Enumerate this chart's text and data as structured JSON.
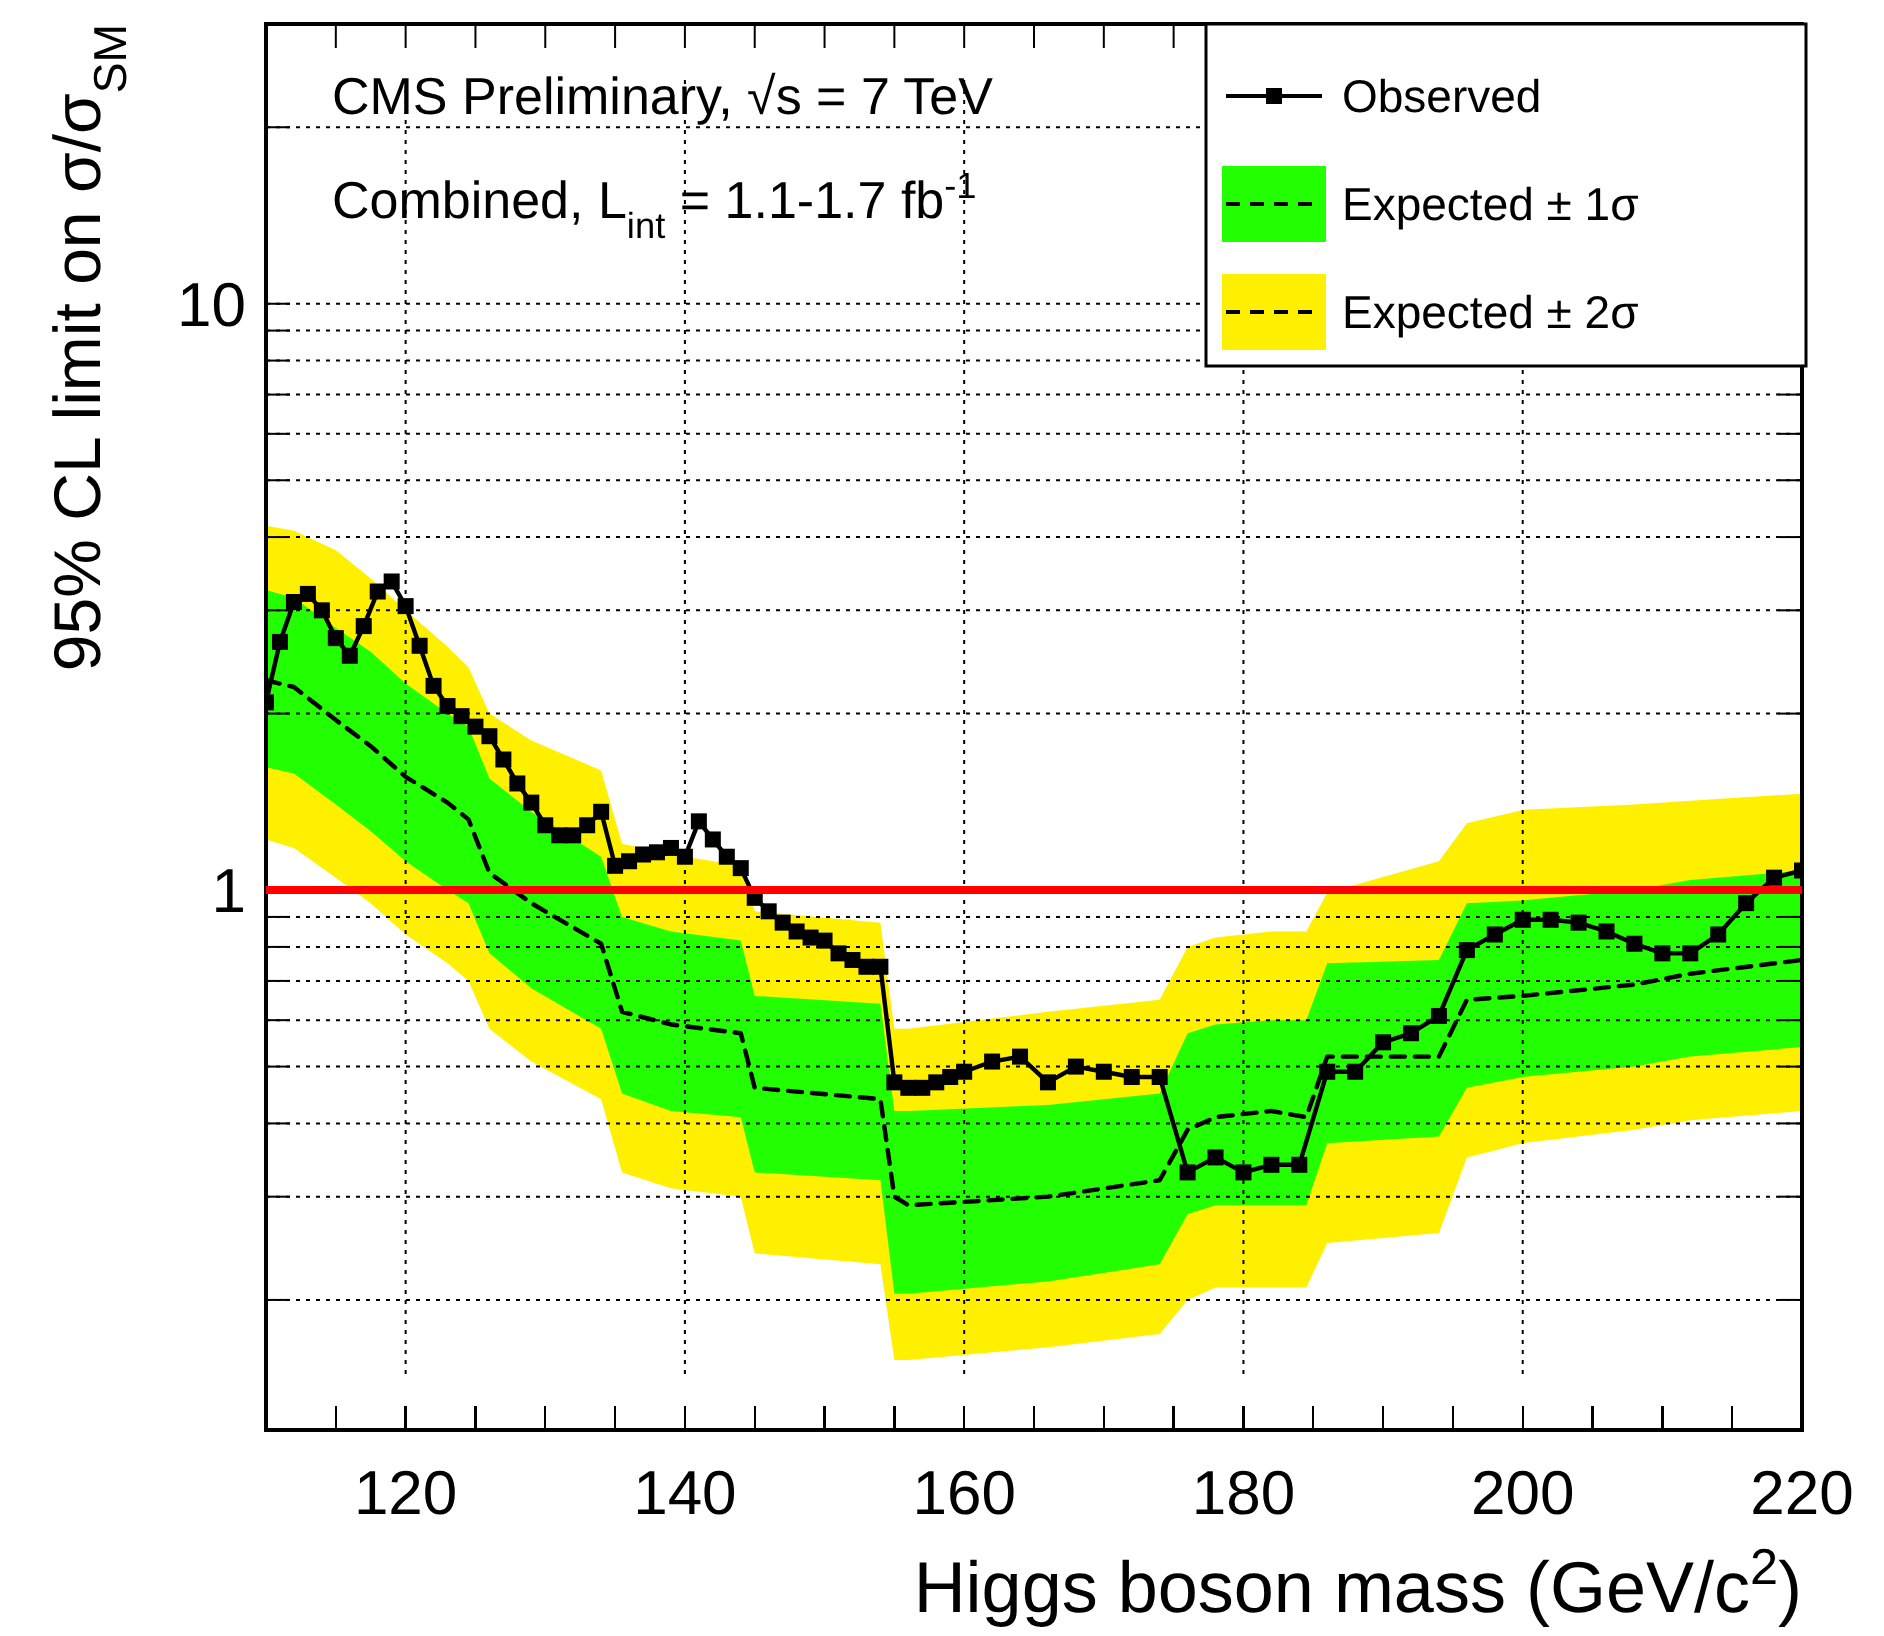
{
  "chart_data": {
    "type": "line",
    "xlabel": "Higgs boson mass (GeV/c$^{2}$)",
    "ylabel": "95% CL limit on σ/σ$_{SM}$",
    "annotations": [
      "CMS Preliminary, √s = 7 TeV",
      "Combined, L$_{int}$ = 1.1-1.7 fb$^{-1}$"
    ],
    "xlim": [
      110,
      220
    ],
    "xticks": [
      {
        "value": 115,
        "label": null
      },
      120,
      {
        "value": 125,
        "label": null
      },
      {
        "value": 130,
        "label": null
      },
      {
        "value": 135,
        "label": null
      },
      140,
      {
        "value": 145,
        "label": null
      },
      {
        "value": 150,
        "label": null
      },
      {
        "value": 155,
        "label": null
      },
      160,
      {
        "value": 165,
        "label": null
      },
      {
        "value": 170,
        "label": null
      },
      {
        "value": 175,
        "label": null
      },
      180,
      {
        "value": 185,
        "label": null
      },
      {
        "value": 190,
        "label": null
      },
      {
        "value": 195,
        "label": null
      },
      200,
      {
        "value": 205,
        "label": null
      },
      {
        "value": 210,
        "label": null
      },
      {
        "value": 215,
        "label": null
      },
      220
    ],
    "ylim": [
      0.12,
      30
    ],
    "log": true,
    "yticks": [
      {
        "value": 0.2,
        "label": null
      },
      {
        "value": 0.3,
        "label": null
      },
      {
        "value": 0.4,
        "label": null
      },
      {
        "value": 0.5,
        "label": null
      },
      {
        "value": 0.6,
        "label": null
      },
      {
        "value": 0.7,
        "label": null
      },
      {
        "value": 0.8,
        "label": null
      },
      {
        "value": 0.9,
        "label": null
      },
      1,
      {
        "value": 2,
        "label": null
      },
      {
        "value": 3,
        "label": null
      },
      {
        "value": 4,
        "label": null
      },
      {
        "value": 5,
        "label": null
      },
      {
        "value": 6,
        "label": null
      },
      {
        "value": 7,
        "label": null
      },
      {
        "value": 8,
        "label": null
      },
      {
        "value": 9,
        "label": null
      },
      10,
      {
        "value": 20,
        "label": null
      }
    ],
    "grid": true,
    "legend": "top right",
    "ref_lines": [
      {
        "axis": "y",
        "value": 1,
        "color": "#ff0000"
      }
    ],
    "series": [
      {
        "name": "Expected ± 2σ",
        "type": "area",
        "color": "#fff000",
        "x": [
          110,
          112,
          115,
          117.5,
          120,
          123,
          124.5,
          126,
          129,
          134,
          135.5,
          139,
          144,
          145,
          154,
          155,
          156,
          166,
          174,
          176,
          178,
          182,
          184.5,
          186,
          194,
          196,
          200,
          208,
          212,
          220
        ],
        "values": [
          null,
          null,
          null,
          null,
          null,
          null,
          null,
          null,
          null,
          null,
          null,
          null,
          null,
          null,
          null,
          null,
          null,
          null,
          null,
          null,
          null,
          null,
          null,
          null,
          null,
          null,
          null,
          null,
          null,
          null
        ],
        "lower": [
          1.22,
          1.18,
          1.05,
          0.95,
          0.84,
          0.75,
          0.7,
          0.58,
          0.51,
          0.44,
          0.33,
          0.31,
          0.3,
          0.24,
          0.23,
          0.158,
          0.158,
          0.166,
          0.175,
          0.2,
          0.21,
          0.21,
          0.21,
          0.25,
          0.26,
          0.35,
          0.37,
          0.39,
          0.405,
          0.42
        ],
        "upper": [
          4.18,
          4.1,
          3.8,
          3.4,
          3.0,
          2.6,
          2.4,
          2.0,
          1.8,
          1.6,
          1.2,
          1.15,
          1.1,
          0.92,
          0.88,
          0.58,
          0.58,
          0.62,
          0.65,
          0.8,
          0.83,
          0.85,
          0.85,
          0.99,
          1.12,
          1.3,
          1.37,
          1.4,
          1.42,
          1.46
        ]
      },
      {
        "name": "Expected ± 1σ",
        "type": "area",
        "color": "#22ff00",
        "x": [
          110,
          112,
          115,
          117.5,
          120,
          123,
          124.5,
          126,
          129,
          134,
          135.5,
          139,
          144,
          145,
          154,
          155,
          156,
          166,
          174,
          176,
          178,
          182,
          184.5,
          186,
          194,
          196,
          200,
          208,
          212,
          220
        ],
        "values": [
          null,
          null,
          null,
          null,
          null,
          null,
          null,
          null,
          null,
          null,
          null,
          null,
          null,
          null,
          null,
          null,
          null,
          null,
          null,
          null,
          null,
          null,
          null,
          null,
          null,
          null,
          null,
          null,
          null,
          null
        ],
        "lower": [
          1.62,
          1.58,
          1.4,
          1.26,
          1.12,
          1.0,
          0.95,
          0.78,
          0.68,
          0.58,
          0.45,
          0.42,
          0.41,
          0.33,
          0.32,
          0.205,
          0.205,
          0.215,
          0.23,
          0.28,
          0.29,
          0.29,
          0.29,
          0.37,
          0.38,
          0.46,
          0.48,
          0.5,
          0.52,
          0.54
        ],
        "upper": [
          3.25,
          3.15,
          2.8,
          2.55,
          2.25,
          2.0,
          1.9,
          1.55,
          1.36,
          1.14,
          0.9,
          0.85,
          0.82,
          0.66,
          0.64,
          0.42,
          0.42,
          0.43,
          0.45,
          0.57,
          0.59,
          0.6,
          0.6,
          0.75,
          0.76,
          0.95,
          0.96,
          1.0,
          1.04,
          1.08
        ]
      },
      {
        "type": "line",
        "color": "#000000",
        "line_style": "dashed",
        "marker": "none",
        "x": [
          110,
          112,
          115,
          117.5,
          120,
          123,
          124.5,
          126,
          129,
          134,
          135.5,
          139,
          144,
          145,
          154,
          155,
          156,
          166,
          174,
          176,
          178,
          182,
          184.5,
          186,
          194,
          196,
          200,
          208,
          212,
          220
        ],
        "values": [
          2.28,
          2.22,
          1.95,
          1.76,
          1.56,
          1.41,
          1.32,
          1.07,
          0.95,
          0.81,
          0.62,
          0.59,
          0.57,
          0.46,
          0.44,
          0.3,
          0.29,
          0.3,
          0.32,
          0.39,
          0.41,
          0.42,
          0.41,
          0.52,
          0.52,
          0.65,
          0.66,
          0.69,
          0.72,
          0.76
        ]
      },
      {
        "name": "Observed",
        "color": "#000000",
        "marker": "square",
        "x": [
          110,
          111,
          112,
          113,
          114,
          115,
          116,
          117,
          118,
          119,
          120,
          121,
          122,
          123,
          124,
          125,
          126,
          127,
          128,
          129,
          130,
          131,
          132,
          133,
          134,
          135,
          136,
          137,
          138,
          139,
          140,
          141,
          142,
          143,
          144,
          145,
          146,
          147,
          148,
          149,
          150,
          151,
          152,
          153,
          154,
          155,
          156,
          157,
          158,
          159,
          160,
          162,
          164,
          166,
          168,
          170,
          172,
          174,
          176,
          178,
          180,
          182,
          184,
          186,
          188,
          190,
          192,
          194,
          196,
          198,
          200,
          202,
          204,
          206,
          208,
          210,
          212,
          214,
          216,
          218,
          220
        ],
        "values": [
          2.09,
          2.65,
          3.1,
          3.2,
          3.0,
          2.69,
          2.51,
          2.82,
          3.23,
          3.36,
          3.05,
          2.61,
          2.23,
          2.06,
          1.98,
          1.9,
          1.83,
          1.67,
          1.52,
          1.41,
          1.29,
          1.24,
          1.24,
          1.29,
          1.36,
          1.1,
          1.12,
          1.15,
          1.16,
          1.18,
          1.14,
          1.31,
          1.22,
          1.14,
          1.09,
          0.97,
          0.92,
          0.88,
          0.85,
          0.83,
          0.82,
          0.78,
          0.76,
          0.74,
          0.74,
          0.47,
          0.46,
          0.46,
          0.47,
          0.48,
          0.49,
          0.51,
          0.52,
          0.47,
          0.5,
          0.49,
          0.48,
          0.48,
          0.33,
          0.35,
          0.33,
          0.34,
          0.34,
          0.49,
          0.49,
          0.55,
          0.57,
          0.61,
          0.79,
          0.84,
          0.89,
          0.89,
          0.88,
          0.85,
          0.81,
          0.78,
          0.78,
          0.84,
          0.95,
          1.05,
          1.08
        ]
      }
    ]
  }
}
